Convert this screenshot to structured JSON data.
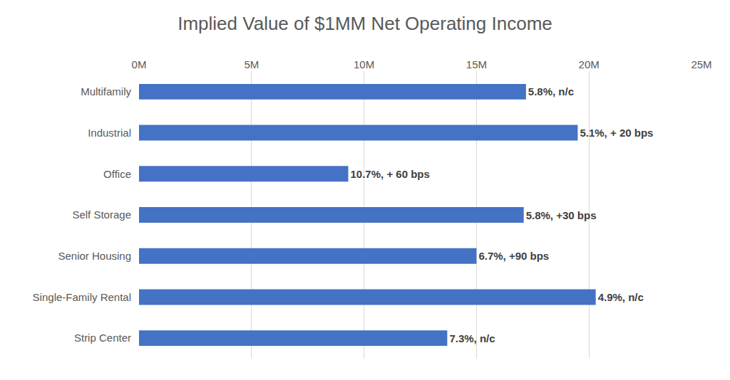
{
  "chart_data": {
    "type": "bar",
    "orientation": "horizontal",
    "title": "Implied Value of $1MM Net Operating Income",
    "categories": [
      "Multifamily",
      "Industrial",
      "Office",
      "Self Storage",
      "Senior Housing",
      "Single-Family Rental",
      "Strip Center"
    ],
    "values": [
      17.2,
      19.5,
      9.3,
      17.1,
      15.0,
      20.3,
      13.7
    ],
    "annotations": [
      "5.8%, n/c",
      "5.1%, + 20 bps",
      "10.7%, + 60 bps",
      "5.8%, +30 bps",
      "6.7%, +90 bps",
      "4.9%, n/c",
      "7.3%, n/c"
    ],
    "color": "#4472c4",
    "xlim": [
      0,
      25
    ],
    "xticks": [
      {
        "value": 0,
        "label": "0M"
      },
      {
        "value": 5,
        "label": "5M"
      },
      {
        "value": 10,
        "label": "10M"
      },
      {
        "value": 15,
        "label": "15M"
      },
      {
        "value": 20,
        "label": "20M"
      },
      {
        "value": 25,
        "label": "25M"
      }
    ],
    "grid": true
  }
}
